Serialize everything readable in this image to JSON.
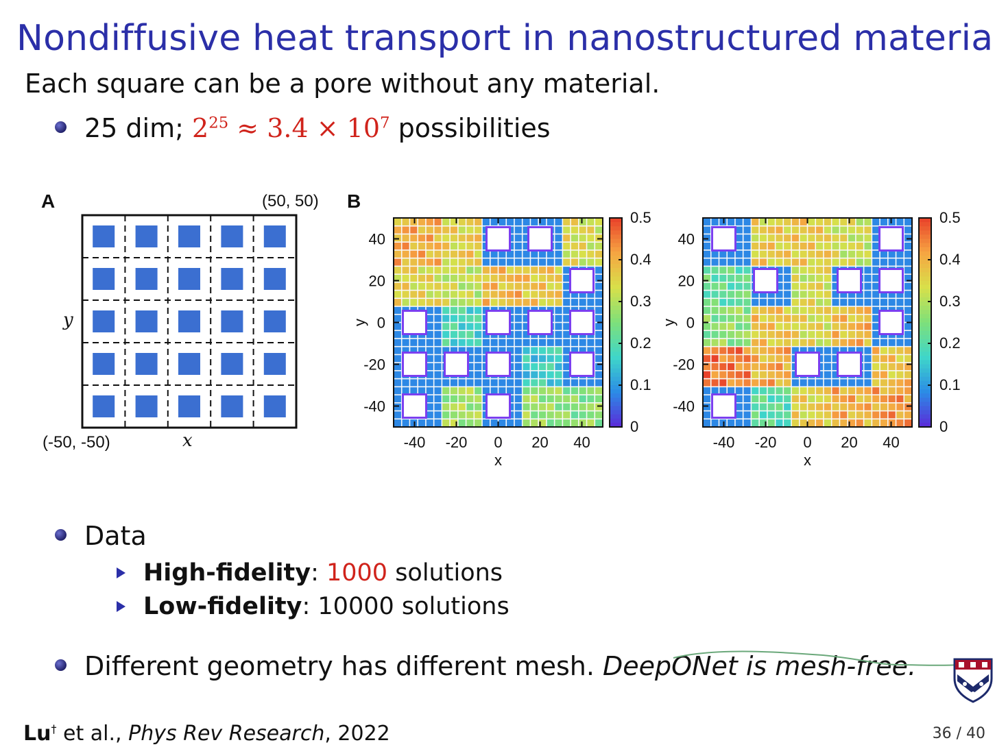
{
  "title": "Nondiffusive heat transport in nanostructured materials",
  "subtitle": "Each square can be a pore without any material.",
  "bullet1": {
    "prefix": "25 dim; ",
    "base": "2",
    "exp": "25",
    "approx": " ≈ 3.4 × 10",
    "exp2": "7",
    "suffix": " possibilities"
  },
  "figA": {
    "label": "A",
    "top_right": "(50, 50)",
    "bottom_left": "(-50, -50)",
    "xlabel": "x",
    "ylabel": "y",
    "grid_rows": 5,
    "grid_cols": 5,
    "square_color": "#3b6fd1"
  },
  "figB": {
    "label": "B",
    "xlabel": "x",
    "ylabel": "y",
    "xticks": [
      "-40",
      "-20",
      "0",
      "20",
      "40"
    ],
    "yticks": [
      "40",
      "20",
      "0",
      "-20",
      "-40"
    ],
    "colorbar_ticks": [
      "0.5",
      "0.4",
      "0.3",
      "0.2",
      "0.1",
      "0"
    ],
    "colormap": [
      "#5b2ad8",
      "#2b8ce6",
      "#3fd6c9",
      "#7ee07a",
      "#d8e04a",
      "#f6a542",
      "#e8402a"
    ],
    "panels": [
      {
        "pores": [
          [
            0,
            2
          ],
          [
            0,
            3
          ],
          [
            1,
            4
          ],
          [
            2,
            0
          ],
          [
            2,
            2
          ],
          [
            2,
            3
          ],
          [
            2,
            4
          ],
          [
            3,
            0
          ],
          [
            3,
            1
          ],
          [
            3,
            2
          ],
          [
            3,
            4
          ],
          [
            4,
            0
          ],
          [
            4,
            2
          ]
        ],
        "field": [
          [
            0.4,
            0.36,
            0.27,
            0.22,
            0.34
          ],
          [
            0.35,
            0.31,
            0.39,
            0.37,
            0.24
          ],
          [
            0.2,
            0.18,
            0.2,
            0.17,
            0.15
          ],
          [
            0.15,
            0.14,
            0.13,
            0.16,
            0.15
          ],
          [
            0.14,
            0.28,
            0.3,
            0.27,
            0.26
          ]
        ]
      },
      {
        "pores": [
          [
            0,
            0
          ],
          [
            0,
            4
          ],
          [
            1,
            1
          ],
          [
            1,
            3
          ],
          [
            1,
            4
          ],
          [
            2,
            4
          ],
          [
            3,
            2
          ],
          [
            3,
            3
          ],
          [
            4,
            0
          ]
        ],
        "field": [
          [
            0.18,
            0.36,
            0.37,
            0.32,
            0.2
          ],
          [
            0.22,
            0.15,
            0.33,
            0.2,
            0.18
          ],
          [
            0.26,
            0.38,
            0.34,
            0.39,
            0.27
          ],
          [
            0.45,
            0.4,
            0.2,
            0.22,
            0.38
          ],
          [
            0.44,
            0.2,
            0.36,
            0.4,
            0.42
          ]
        ]
      }
    ]
  },
  "data_bullet": "Data",
  "sub1": {
    "bold": "High-fidelity",
    "colon": ": ",
    "value": "1000",
    "rest": " solutions"
  },
  "sub2": {
    "bold": "Low-fidelity",
    "colon": ": ",
    "value": "10000",
    "rest": " solutions"
  },
  "bullet3": {
    "plain": "Different geometry has different mesh.  ",
    "italic": "DeepONet is mesh-free."
  },
  "footer": {
    "author": "Lu",
    "dagger": "†",
    "etal": " et al., ",
    "journal": "Phys Rev Research",
    "year": ", 2022",
    "page": "36 / 40"
  },
  "colors": {
    "title": "#2b2fa8",
    "accent_red": "#d0231b"
  }
}
